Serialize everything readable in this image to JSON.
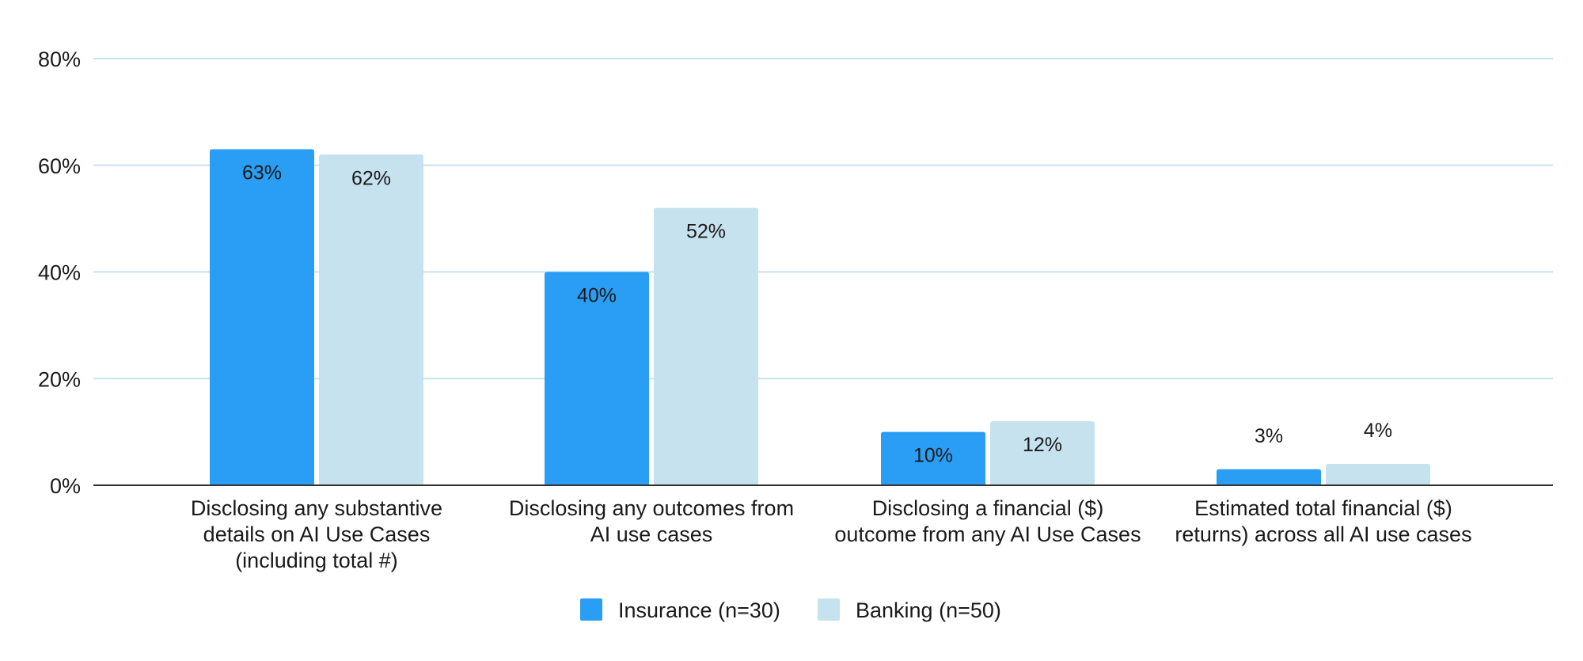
{
  "chart_data": {
    "type": "bar",
    "title": "",
    "xlabel": "",
    "ylabel": "",
    "ylim": [
      0,
      80
    ],
    "y_ticks": [
      "0%",
      "20%",
      "40%",
      "60%",
      "80%"
    ],
    "grid": true,
    "legend_position": "bottom-center",
    "categories": [
      [
        "Disclosing any substantive",
        "details on AI Use Cases",
        "(including total #)"
      ],
      [
        "Disclosing any outcomes from",
        "AI use cases"
      ],
      [
        "Disclosing a financial ($)",
        "outcome from any AI Use Cases"
      ],
      [
        "Estimated total financial ($)",
        "returns) across all AI use cases"
      ]
    ],
    "series": [
      {
        "name": "Insurance (n=30)",
        "color": "#2a9df4",
        "values": [
          63,
          40,
          10,
          3
        ],
        "labels": [
          "63%",
          "40%",
          "10%",
          "3%"
        ]
      },
      {
        "name": "Banking (n=50)",
        "color": "#c6e2ee",
        "values": [
          62,
          52,
          12,
          4
        ],
        "labels": [
          "62%",
          "52%",
          "12%",
          "4%"
        ]
      }
    ],
    "colors": {
      "gridline": "#c7e3ee",
      "baseline": "#333333"
    }
  }
}
